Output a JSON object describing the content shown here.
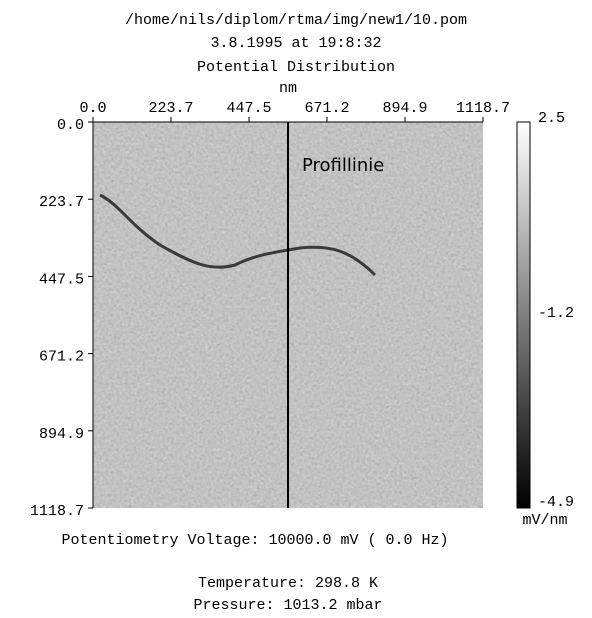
{
  "header": {
    "path": "/home/nils/diplom/rtma/img/new1/10.pom",
    "date": "3.8.1995 at 19:8:32",
    "title": "Potential Distribution",
    "x_unit": "nm"
  },
  "x_ticks": [
    "0.0",
    "223.7",
    "447.5",
    "671.2",
    "894.9",
    "1118.7"
  ],
  "y_ticks": [
    "0.0",
    "223.7",
    "447.5",
    "671.2",
    "894.9",
    "1118.7"
  ],
  "annotation": "Profillinie",
  "colorbar": {
    "max": "2.5",
    "mid": "-1.2",
    "min": "-4.9",
    "unit": "mV/nm"
  },
  "footer": {
    "voltage": "Potentiometry Voltage: 10000.0 mV ( 0.0 Hz)",
    "temperature": "Temperature: 298.8 K",
    "pressure": "Pressure: 1013.2 mbar"
  }
}
